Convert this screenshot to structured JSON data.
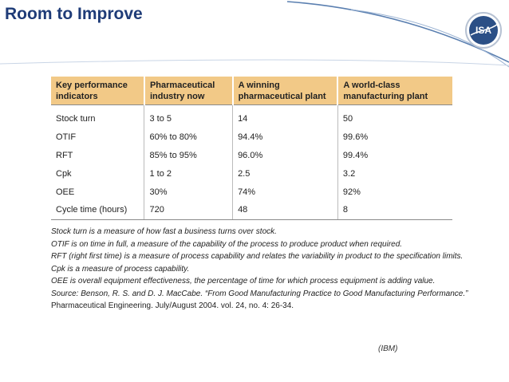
{
  "slide": {
    "title": "Room to Improve",
    "credit": "(IBM)"
  },
  "logo": {
    "text": "ISA"
  },
  "colors": {
    "title": "#1f3c78",
    "header_fill": "#f2c987",
    "swoosh": "#5a7fb0",
    "logo_fill": "#2b4f86"
  },
  "table": {
    "headers": [
      {
        "line1": "Key performance",
        "line2": "indicators"
      },
      {
        "line1": "Pharmaceutical",
        "line2": "industry now"
      },
      {
        "line1": "A winning",
        "line2": "pharmaceutical plant"
      },
      {
        "line1": "A world-class",
        "line2": "manufacturing plant"
      }
    ],
    "rows": [
      [
        "Stock turn",
        "3 to 5",
        "14",
        "50"
      ],
      [
        "OTIF",
        "60% to 80%",
        "94.4%",
        "99.6%"
      ],
      [
        "RFT",
        "85% to 95%",
        "96.0%",
        "99.4%"
      ],
      [
        "Cpk",
        "1 to 2",
        "2.5",
        "3.2"
      ],
      [
        "OEE",
        "30%",
        "74%",
        "92%"
      ],
      [
        "Cycle time (hours)",
        "720",
        "48",
        "8"
      ]
    ]
  },
  "notes": {
    "line1": "Stock turn is a measure of how fast a business turns over stock.",
    "line2": "OTIF is on time in full, a measure of the capability of the process to produce product when required.",
    "line3": "RFT (right first time) is a measure of process capability and relates the variability in product to the specification limits.",
    "line4": "Cpk is a measure of process capability.",
    "line5": "OEE is overall equipment effectiveness, the percentage of time for which process equipment is adding value.",
    "line6": "Source: Benson, R. S. and D. J. MacCabe. “From Good Manufacturing Practice to Good Manufacturing Performance.”",
    "line7": "Pharmaceutical Engineering. July/August 2004. vol. 24, no. 4: 26-34."
  }
}
